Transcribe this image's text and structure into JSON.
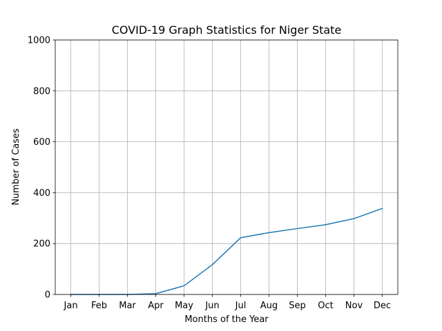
{
  "chart_data": {
    "type": "line",
    "title": "COVID-19 Graph Statistics for Niger State",
    "xlabel": "Months of the Year",
    "ylabel": "Number of Cases",
    "categories": [
      "Jan",
      "Feb",
      "Mar",
      "Apr",
      "May",
      "Jun",
      "Jul",
      "Aug",
      "Sep",
      "Oct",
      "Nov",
      "Dec"
    ],
    "series": [
      {
        "values": [
          0,
          0,
          0,
          3,
          34,
          117,
          223,
          243,
          259,
          274,
          298,
          338
        ],
        "color": "#1f77b4"
      }
    ],
    "ylim": [
      0,
      1000
    ],
    "yticks": [
      0,
      200,
      400,
      600,
      800,
      1000
    ],
    "grid": true
  }
}
